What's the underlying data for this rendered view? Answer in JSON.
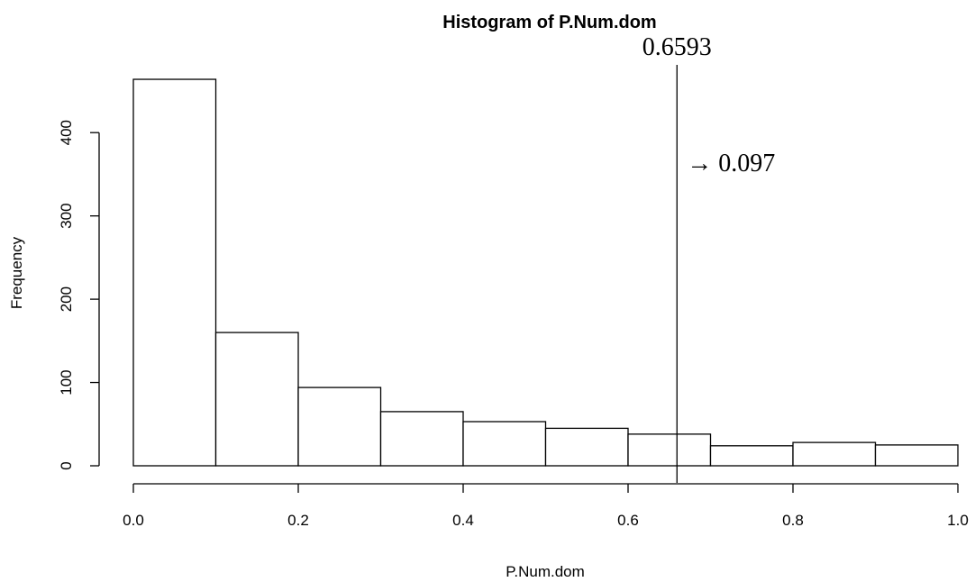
{
  "chart_data": {
    "type": "bar",
    "title": "Histogram of P.Num.dom",
    "xlabel": "P.Num.dom",
    "ylabel": "Frequency",
    "xlim": [
      0.0,
      1.0
    ],
    "ylim": [
      0,
      465
    ],
    "bins": [
      {
        "x0": 0.0,
        "x1": 0.1,
        "count": 464
      },
      {
        "x0": 0.1,
        "x1": 0.2,
        "count": 160
      },
      {
        "x0": 0.2,
        "x1": 0.3,
        "count": 94
      },
      {
        "x0": 0.3,
        "x1": 0.4,
        "count": 65
      },
      {
        "x0": 0.4,
        "x1": 0.5,
        "count": 53
      },
      {
        "x0": 0.5,
        "x1": 0.6,
        "count": 45
      },
      {
        "x0": 0.6,
        "x1": 0.7,
        "count": 38
      },
      {
        "x0": 0.7,
        "x1": 0.8,
        "count": 24
      },
      {
        "x0": 0.8,
        "x1": 0.9,
        "count": 28
      },
      {
        "x0": 0.9,
        "x1": 1.0,
        "count": 25
      }
    ],
    "x_ticks": [
      0.0,
      0.2,
      0.4,
      0.6,
      0.8,
      1.0
    ],
    "x_tick_labels": [
      "0.0",
      "0.2",
      "0.4",
      "0.6",
      "0.8",
      "1.0"
    ],
    "y_ticks": [
      0,
      100,
      200,
      300,
      400
    ],
    "y_tick_labels": [
      "0",
      "100",
      "200",
      "300",
      "400"
    ],
    "reference_line": {
      "x": 0.6593,
      "label": "0.6593",
      "annotation": "→ 0.097"
    }
  }
}
